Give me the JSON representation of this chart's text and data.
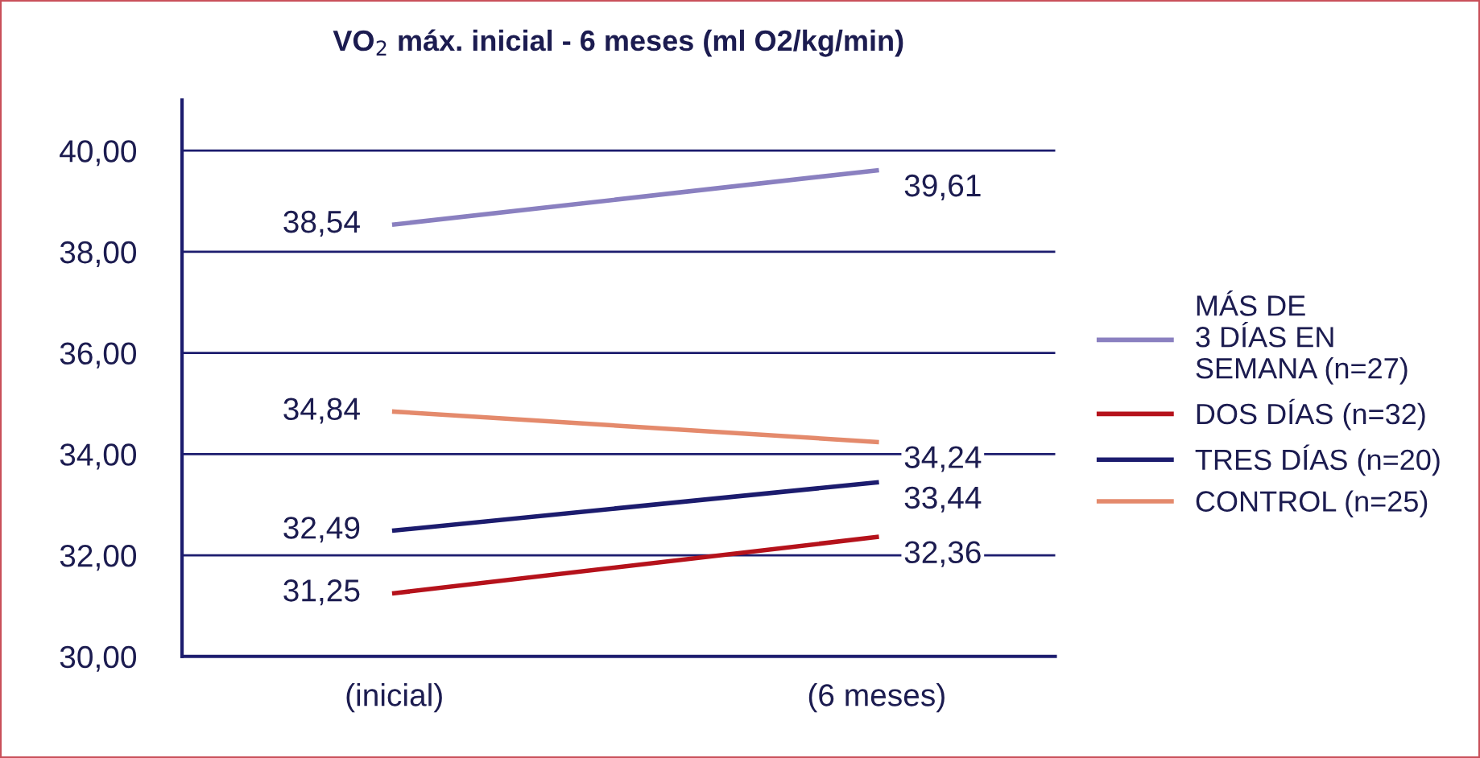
{
  "chart_data": {
    "type": "line",
    "title": "VO$_{2}$ máx. inicial - 6 meses (ml O2/kg/min)",
    "categories": [
      "(inicial)",
      "(6 meses)"
    ],
    "series": [
      {
        "name": "MÁS DE\n3 DÍAS EN\nSEMANA (n=27)",
        "color": "#8a80c0",
        "values": [
          38.54,
          39.61
        ],
        "value_labels": [
          "38,54",
          "39,61"
        ]
      },
      {
        "name": "DOS DÍAS (n=32)",
        "color": "#b5121b",
        "values": [
          31.25,
          32.36
        ],
        "value_labels": [
          "31,25",
          "32,36"
        ]
      },
      {
        "name": "TRES DÍAS (n=20)",
        "color": "#1c1c6e",
        "values": [
          32.49,
          33.44
        ],
        "value_labels": [
          "32,49",
          "33,44"
        ]
      },
      {
        "name": "CONTROL (n=25)",
        "color": "#e48a6c",
        "values": [
          34.84,
          34.24
        ],
        "value_labels": [
          "34,84",
          "34,24"
        ]
      }
    ],
    "ylim": [
      30,
      41
    ],
    "yticks": [
      {
        "value": 30,
        "label": "30,00"
      },
      {
        "value": 32,
        "label": "32,00"
      },
      {
        "value": 34,
        "label": "34,00"
      },
      {
        "value": 36,
        "label": "36,00"
      },
      {
        "value": 38,
        "label": "38,00"
      },
      {
        "value": 40,
        "label": "40,00"
      }
    ],
    "grid": "y",
    "legend": "right",
    "marker": "none",
    "line_style": "solid"
  }
}
